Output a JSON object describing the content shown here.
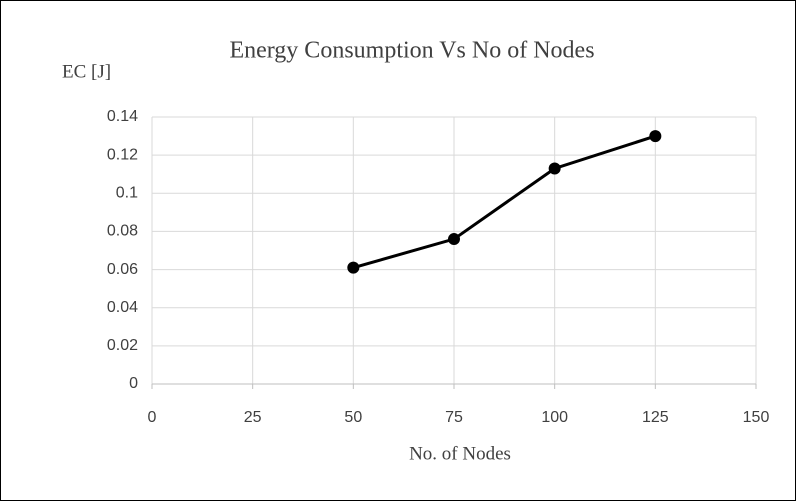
{
  "chart_data": {
    "type": "line",
    "title": "Energy Consumption Vs No of Nodes",
    "y_label": "EC [J]",
    "x_label": "No. of  Nodes",
    "x": [
      50,
      75,
      100,
      125
    ],
    "series": [
      {
        "name": "EC",
        "color": "#000000",
        "values": [
          0.061,
          0.076,
          0.113,
          0.13
        ]
      }
    ],
    "xlim": [
      0,
      150
    ],
    "xticks": [
      0,
      25,
      50,
      75,
      100,
      125,
      150
    ],
    "ylim": [
      0,
      0.14
    ],
    "yticks": [
      0,
      0.02,
      0.04,
      0.06,
      0.08,
      0.1,
      0.12,
      0.14
    ],
    "grid": true
  }
}
